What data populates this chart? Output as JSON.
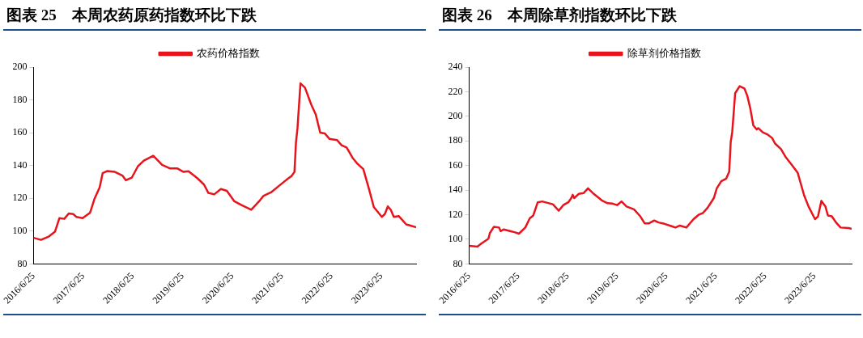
{
  "chart_data": [
    {
      "type": "line",
      "title": "图表 25　本周农药原药指数环比下跌",
      "legend": "top",
      "grid": false,
      "marker": "none",
      "line_style": "solid",
      "xlim": [
        "2016-06-25",
        "2024-03-07"
      ],
      "xticks": [
        {
          "value": "2016-06-25",
          "label": "2016/6/25"
        },
        {
          "value": "2017-06-25",
          "label": "2017/6/25"
        },
        {
          "value": "2018-06-25",
          "label": "2018/6/25"
        },
        {
          "value": "2019-06-25",
          "label": "2019/6/25"
        },
        {
          "value": "2020-06-25",
          "label": "2020/6/25"
        },
        {
          "value": "2021-06-25",
          "label": "2021/6/25"
        },
        {
          "value": "2022-06-25",
          "label": "2022/6/25"
        },
        {
          "value": "2023-06-25",
          "label": "2023/6/25"
        }
      ],
      "ylim": [
        80,
        200
      ],
      "yticks": [
        80,
        100,
        120,
        140,
        160,
        180,
        200
      ],
      "series": [
        {
          "name": "农药价格指数",
          "color": "#e8141c",
          "x": [
            "2016-06-25",
            "2016-08-19",
            "2016-10-17",
            "2016-11-30",
            "2017-01-01",
            "2017-02-06",
            "2017-03-11",
            "2017-04-13",
            "2017-05-05",
            "2017-06-21",
            "2017-08-15",
            "2017-09-17",
            "2017-10-24",
            "2017-11-15",
            "2017-12-18",
            "2018-02-13",
            "2018-04-09",
            "2018-05-05",
            "2018-06-18",
            "2018-08-01",
            "2018-09-14",
            "2018-11-22",
            "2019-01-26",
            "2019-03-26",
            "2019-05-19",
            "2019-07-02",
            "2019-08-08",
            "2019-10-13",
            "2019-11-30",
            "2020-01-01",
            "2020-02-13",
            "2020-04-02",
            "2020-05-16",
            "2020-07-10",
            "2020-08-26",
            "2020-11-11",
            "2021-01-08",
            "2021-02-10",
            "2021-04-05",
            "2021-06-03",
            "2021-07-28",
            "2021-09-03",
            "2021-09-25",
            "2021-10-06",
            "2021-10-17",
            "2021-11-08",
            "2021-12-11",
            "2022-01-26",
            "2022-02-28",
            "2022-04-02",
            "2022-05-05",
            "2022-06-10",
            "2022-08-04",
            "2022-09-06",
            "2022-10-13",
            "2022-11-26",
            "2022-12-29",
            "2023-02-13",
            "2023-03-29",
            "2023-05-01",
            "2023-06-29",
            "2023-07-21",
            "2023-08-12",
            "2023-09-03",
            "2023-09-25",
            "2023-10-31",
            "2023-12-25",
            "2024-03-07"
          ],
          "values": [
            95.9,
            94.7,
            96.8,
            99.7,
            107.9,
            107.5,
            110.8,
            110.4,
            108.7,
            107.9,
            111.3,
            119.9,
            126.7,
            135.3,
            136.6,
            136.1,
            133.9,
            131.0,
            132.7,
            139.5,
            143.0,
            145.9,
            140.4,
            138.2,
            138.2,
            136.1,
            136.5,
            132.2,
            128.4,
            123.3,
            122.4,
            125.7,
            124.6,
            118.2,
            116.1,
            113.0,
            118.2,
            121.6,
            123.6,
            127.6,
            131.3,
            133.6,
            136.1,
            154.1,
            162.7,
            190.1,
            187.5,
            177.2,
            171.2,
            160.1,
            159.6,
            156.2,
            155.5,
            152.4,
            151.0,
            144.7,
            141.3,
            137.8,
            125.0,
            114.7,
            108.7,
            110.4,
            115.1,
            113.0,
            108.7,
            109.2,
            104.1,
            102.4
          ]
        }
      ]
    },
    {
      "type": "line",
      "title": "图表 26　本周除草剂指数环比下跌",
      "legend": "top",
      "grid": false,
      "marker": "none",
      "line_style": "solid",
      "xlim": [
        "2016-06-25",
        "2024-03-26"
      ],
      "xticks": [
        {
          "value": "2016-06-25",
          "label": "2016/6/25"
        },
        {
          "value": "2017-06-25",
          "label": "2017/6/25"
        },
        {
          "value": "2018-06-25",
          "label": "2018/6/25"
        },
        {
          "value": "2019-06-25",
          "label": "2019/6/25"
        },
        {
          "value": "2020-06-25",
          "label": "2020/6/25"
        },
        {
          "value": "2021-06-25",
          "label": "2021/6/25"
        },
        {
          "value": "2022-06-25",
          "label": "2022/6/25"
        },
        {
          "value": "2023-06-25",
          "label": "2023/6/25"
        }
      ],
      "ylim": [
        80,
        240
      ],
      "yticks": [
        80,
        100,
        120,
        140,
        160,
        180,
        200,
        220,
        240
      ],
      "series": [
        {
          "name": "除草剂价格指数",
          "color": "#e8141c",
          "x": [
            "2016-06-25",
            "2016-08-26",
            "2016-09-21",
            "2016-11-15",
            "2016-11-26",
            "2016-12-25",
            "2017-02-02",
            "2017-02-13",
            "2017-03-07",
            "2017-04-24",
            "2017-05-27",
            "2017-06-29",
            "2017-08-15",
            "2017-09-17",
            "2017-10-13",
            "2017-11-15",
            "2017-12-18",
            "2018-03-07",
            "2018-04-20",
            "2018-05-23",
            "2018-06-29",
            "2018-07-21",
            "2018-08-01",
            "2018-08-12",
            "2018-09-14",
            "2018-10-20",
            "2018-11-22",
            "2019-01-04",
            "2019-03-04",
            "2019-04-16",
            "2019-05-23",
            "2019-06-25",
            "2019-07-28",
            "2019-09-03",
            "2019-10-28",
            "2019-12-14",
            "2020-01-15",
            "2020-02-17",
            "2020-03-26",
            "2020-04-27",
            "2020-06-10",
            "2020-07-28",
            "2020-08-30",
            "2020-10-02",
            "2020-11-19",
            "2021-01-11",
            "2021-02-17",
            "2021-03-22",
            "2021-04-24",
            "2021-06-10",
            "2021-07-02",
            "2021-08-04",
            "2021-09-10",
            "2021-10-02",
            "2021-10-13",
            "2021-10-24",
            "2021-11-15",
            "2021-12-18",
            "2022-01-22",
            "2022-02-13",
            "2022-03-07",
            "2022-03-29",
            "2022-04-24",
            "2022-05-05",
            "2022-06-07",
            "2022-07-10",
            "2022-08-15",
            "2022-09-06",
            "2022-10-20",
            "2022-11-26",
            "2022-12-29",
            "2023-01-30",
            "2023-02-21",
            "2023-04-09",
            "2023-05-12",
            "2023-06-29",
            "2023-07-21",
            "2023-08-15",
            "2023-09-14",
            "2023-10-02",
            "2023-10-31",
            "2023-12-03",
            "2024-01-04",
            "2024-03-04",
            "2024-03-26"
          ],
          "values": [
            94.8,
            94.1,
            96.4,
            100.5,
            105.1,
            110.1,
            109.6,
            106.7,
            108.0,
            106.7,
            105.8,
            104.6,
            109.6,
            117.1,
            119.4,
            130.1,
            130.8,
            128.5,
            123.3,
            127.8,
            130.1,
            133.5,
            136.2,
            133.5,
            136.9,
            137.6,
            141.5,
            136.9,
            131.7,
            129.4,
            129.0,
            127.8,
            130.8,
            126.7,
            124.4,
            118.7,
            113.0,
            113.0,
            115.3,
            113.7,
            112.6,
            110.8,
            109.6,
            111.2,
            109.6,
            116.4,
            119.9,
            121.5,
            125.5,
            133.5,
            141.5,
            147.2,
            149.4,
            155.1,
            179.0,
            187.0,
            218.8,
            224.5,
            222.7,
            216.6,
            206.3,
            192.7,
            189.3,
            190.4,
            187.0,
            185.4,
            182.4,
            177.9,
            173.3,
            166.5,
            162.0,
            157.4,
            154.0,
            135.8,
            126.7,
            116.4,
            118.7,
            131.3,
            126.7,
            119.4,
            118.7,
            113.5,
            109.6,
            109.2,
            108.5
          ]
        }
      ]
    }
  ]
}
